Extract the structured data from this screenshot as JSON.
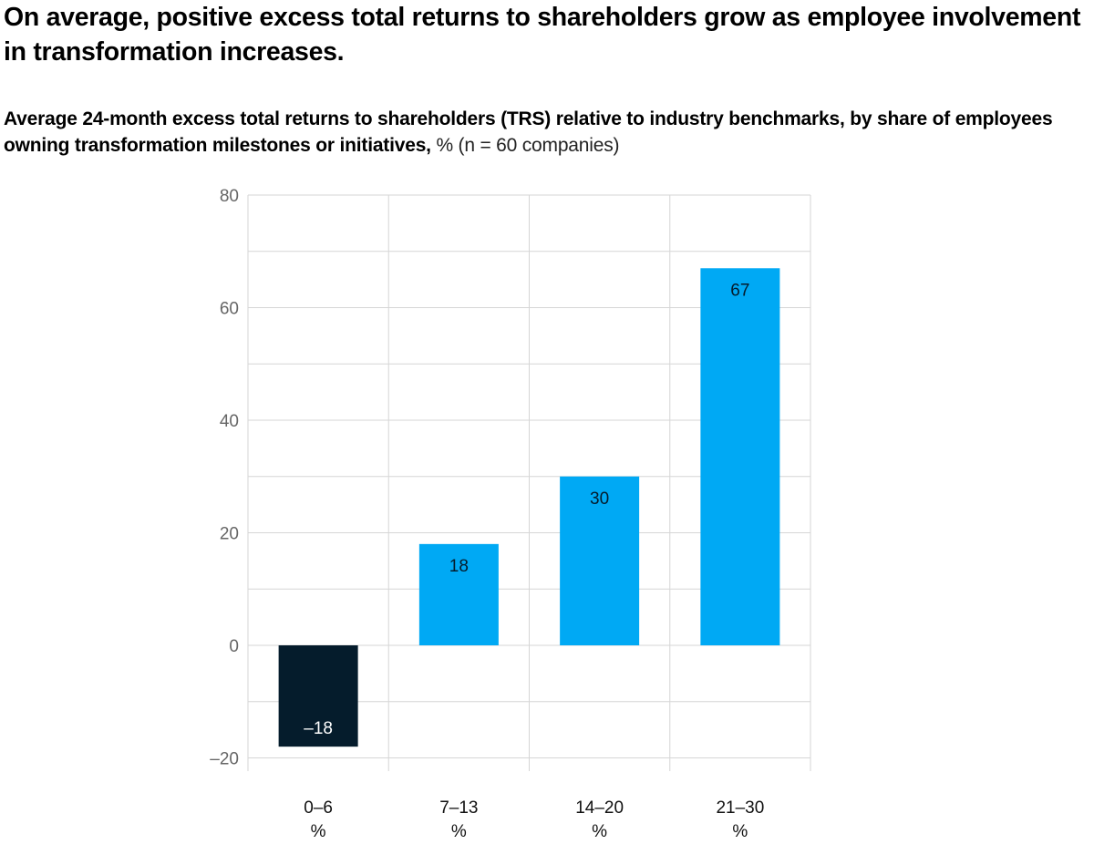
{
  "chart_data": {
    "type": "bar",
    "title": "On average, positive excess total returns to shareholders grow as employee involvement in transformation increases.",
    "subtitle_bold": "Average 24-month excess total returns to shareholders (TRS) relative to industry benchmarks, by share of employees owning transformation milestones or initiatives,",
    "subtitle_normal": " % (n = 60 companies)",
    "xlabel": "",
    "ylabel": "",
    "categories": [
      "0–6 %",
      "7–13 %",
      "14–20 %",
      "21–30 %"
    ],
    "category_lines": [
      [
        "0–6",
        "%"
      ],
      [
        "7–13",
        "%"
      ],
      [
        "14–20",
        "%"
      ],
      [
        "21–30",
        "%"
      ]
    ],
    "values": [
      -18,
      18,
      30,
      67
    ],
    "data_labels": [
      "–18",
      "18",
      "30",
      "67"
    ],
    "colors": [
      "#051c2c",
      "#00a9f4",
      "#00a9f4",
      "#00a9f4"
    ],
    "label_colors": [
      "#ffffff",
      "#051c2c",
      "#051c2c",
      "#051c2c"
    ],
    "ylim": [
      -20,
      80
    ],
    "yticks": [
      80,
      60,
      40,
      20,
      0,
      -20
    ],
    "ytick_labels": [
      "80",
      "60",
      "40",
      "20",
      "0",
      "–20"
    ],
    "minor_grid_step": 10,
    "grid": true,
    "legend": "none"
  }
}
